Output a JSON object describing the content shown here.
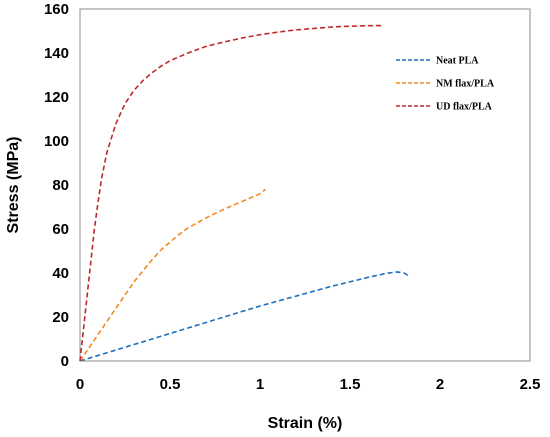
{
  "chart_data": {
    "type": "line",
    "xlabel": "Strain (%)",
    "ylabel": "Stress (MPa)",
    "xlim": [
      0,
      2.5
    ],
    "ylim": [
      0,
      160
    ],
    "xticks": [
      "0",
      "0.5",
      "1",
      "1.5",
      "2",
      "2.5"
    ],
    "yticks": [
      "0",
      "20",
      "40",
      "60",
      "80",
      "100",
      "120",
      "140",
      "160"
    ],
    "grid": false,
    "legend_position": "top-right",
    "line_style": "dashed",
    "series": [
      {
        "name": "Neat PLA",
        "color": "#1f6fbf",
        "points": [
          [
            0,
            0
          ],
          [
            0.2,
            5
          ],
          [
            0.4,
            10
          ],
          [
            0.6,
            15
          ],
          [
            0.8,
            20
          ],
          [
            1.0,
            25
          ],
          [
            1.2,
            29.5
          ],
          [
            1.4,
            34
          ],
          [
            1.6,
            38
          ],
          [
            1.7,
            39.8
          ],
          [
            1.76,
            40.5
          ],
          [
            1.8,
            40
          ],
          [
            1.83,
            38.5
          ]
        ]
      },
      {
        "name": "NM flax/PLA",
        "color": "#f08a24",
        "points": [
          [
            0,
            0
          ],
          [
            0.05,
            6
          ],
          [
            0.1,
            12
          ],
          [
            0.15,
            18
          ],
          [
            0.2,
            24
          ],
          [
            0.25,
            30
          ],
          [
            0.3,
            36
          ],
          [
            0.35,
            41
          ],
          [
            0.4,
            46
          ],
          [
            0.45,
            50.5
          ],
          [
            0.5,
            54
          ],
          [
            0.55,
            57.5
          ],
          [
            0.6,
            60.5
          ],
          [
            0.7,
            65
          ],
          [
            0.8,
            69
          ],
          [
            0.9,
            72.5
          ],
          [
            1.0,
            76
          ],
          [
            1.03,
            78
          ]
        ]
      },
      {
        "name": "UD flax/PLA",
        "color": "#c0282d",
        "points": [
          [
            0,
            0
          ],
          [
            0.02,
            15
          ],
          [
            0.04,
            30
          ],
          [
            0.06,
            45
          ],
          [
            0.08,
            60
          ],
          [
            0.1,
            72
          ],
          [
            0.12,
            83
          ],
          [
            0.15,
            95
          ],
          [
            0.2,
            108
          ],
          [
            0.25,
            117
          ],
          [
            0.3,
            123
          ],
          [
            0.35,
            127.5
          ],
          [
            0.4,
            131
          ],
          [
            0.45,
            134
          ],
          [
            0.5,
            136.5
          ],
          [
            0.6,
            140
          ],
          [
            0.7,
            143
          ],
          [
            0.8,
            145
          ],
          [
            0.9,
            146.8
          ],
          [
            1.0,
            148.3
          ],
          [
            1.1,
            149.5
          ],
          [
            1.2,
            150.5
          ],
          [
            1.3,
            151.2
          ],
          [
            1.4,
            151.8
          ],
          [
            1.5,
            152.2
          ],
          [
            1.6,
            152.4
          ],
          [
            1.68,
            152.5
          ]
        ]
      }
    ]
  }
}
